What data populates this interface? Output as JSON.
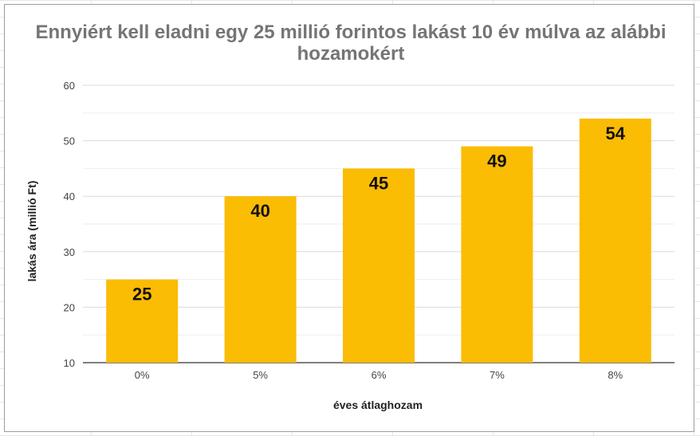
{
  "chart_data": {
    "type": "bar",
    "title": "Ennyiért kell eladni egy 25 millió forintos lakást 10 év múlva az alábbi hozamokért",
    "xlabel": "éves átlaghozam",
    "ylabel": "lakás ára (millió Ft)",
    "categories": [
      "0%",
      "5%",
      "6%",
      "7%",
      "8%"
    ],
    "values": [
      25,
      40,
      45,
      49,
      54
    ],
    "data_labels": [
      "25",
      "40",
      "45",
      "49",
      "54"
    ],
    "ylim": [
      10,
      60
    ],
    "yticks": [
      10,
      20,
      30,
      40,
      50,
      60
    ],
    "grid": true,
    "legend": "none",
    "colors": {
      "bar": "#fbbc04",
      "grid": "#d9d9d9",
      "title": "#757575"
    }
  }
}
